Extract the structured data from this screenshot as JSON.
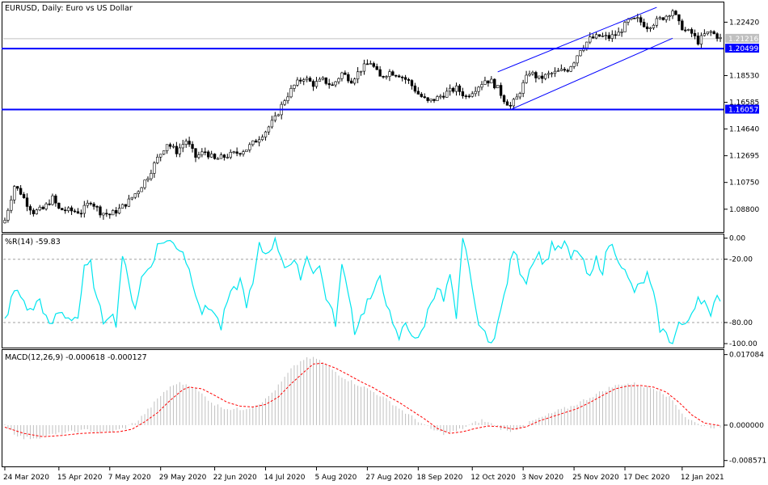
{
  "window_title": "EURUSD, Daily:  Euro vs US Dollar",
  "colors": {
    "background": "#ffffff",
    "candle": "#000000",
    "channel": "#0000ff",
    "level_line": "#0000ff",
    "current_price_line": "#c0c0c0",
    "williams_line": "#00e5ee",
    "macd_hist": "#c0c0c0",
    "macd_signal": "#ff0000",
    "grid_dash": "#a0a0a0"
  },
  "chart_data": [
    {
      "type": "candlestick",
      "title": "EURUSD, Daily:  Euro vs US Dollar",
      "ylim": [
        1.072,
        1.238
      ],
      "y_ticks": [
        "1.22420",
        "1.18530",
        "1.16585",
        "1.14640",
        "1.12695",
        "1.10750",
        "1.08800"
      ],
      "y_tick_values": [
        1.2242,
        1.1853,
        1.16585,
        1.1464,
        1.12695,
        1.1075,
        1.088
      ],
      "x_ticks": [
        "24 Mar 2020",
        "15 Apr 2020",
        "7 May 2020",
        "29 May 2020",
        "22 Jun 2020",
        "14 Jul 2020",
        "5 Aug 2020",
        "27 Aug 2020",
        "18 Sep 2020",
        "12 Oct 2020",
        "3 Nov 2020",
        "25 Nov 2020",
        "17 Dec 2020",
        "12 Jan 2021"
      ],
      "x_tick_bars": [
        0,
        17,
        33,
        49,
        66,
        82,
        98,
        114,
        130,
        147,
        163,
        179,
        195,
        213
      ],
      "bar_count": 226,
      "close_anchors": [
        [
          0,
          1.08
        ],
        [
          3,
          1.105
        ],
        [
          5,
          1.1
        ],
        [
          7,
          1.092
        ],
        [
          9,
          1.086
        ],
        [
          12,
          1.088
        ],
        [
          15,
          1.096
        ],
        [
          17,
          1.088
        ],
        [
          20,
          1.087
        ],
        [
          24,
          1.086
        ],
        [
          27,
          1.094
        ],
        [
          30,
          1.086
        ],
        [
          33,
          1.084
        ],
        [
          36,
          1.088
        ],
        [
          39,
          1.094
        ],
        [
          42,
          1.102
        ],
        [
          45,
          1.112
        ],
        [
          48,
          1.125
        ],
        [
          51,
          1.136
        ],
        [
          54,
          1.13
        ],
        [
          57,
          1.138
        ],
        [
          60,
          1.126
        ],
        [
          63,
          1.13
        ],
        [
          66,
          1.124
        ],
        [
          70,
          1.127
        ],
        [
          73,
          1.129
        ],
        [
          76,
          1.132
        ],
        [
          79,
          1.138
        ],
        [
          82,
          1.145
        ],
        [
          85,
          1.154
        ],
        [
          88,
          1.168
        ],
        [
          91,
          1.178
        ],
        [
          94,
          1.184
        ],
        [
          97,
          1.179
        ],
        [
          100,
          1.182
        ],
        [
          103,
          1.178
        ],
        [
          106,
          1.187
        ],
        [
          109,
          1.182
        ],
        [
          112,
          1.19
        ],
        [
          115,
          1.195
        ],
        [
          118,
          1.184
        ],
        [
          121,
          1.188
        ],
        [
          124,
          1.186
        ],
        [
          127,
          1.181
        ],
        [
          130,
          1.172
        ],
        [
          133,
          1.166
        ],
        [
          136,
          1.169
        ],
        [
          139,
          1.173
        ],
        [
          142,
          1.176
        ],
        [
          145,
          1.17
        ],
        [
          148,
          1.176
        ],
        [
          151,
          1.182
        ],
        [
          153,
          1.181
        ],
        [
          155,
          1.176
        ],
        [
          157,
          1.168
        ],
        [
          159,
          1.163
        ],
        [
          161,
          1.169
        ],
        [
          163,
          1.179
        ],
        [
          165,
          1.188
        ],
        [
          168,
          1.183
        ],
        [
          171,
          1.186
        ],
        [
          174,
          1.188
        ],
        [
          177,
          1.19
        ],
        [
          179,
          1.196
        ],
        [
          181,
          1.205
        ],
        [
          184,
          1.212
        ],
        [
          187,
          1.214
        ],
        [
          190,
          1.213
        ],
        [
          193,
          1.216
        ],
        [
          196,
          1.225
        ],
        [
          199,
          1.226
        ],
        [
          202,
          1.221
        ],
        [
          205,
          1.225
        ],
        [
          208,
          1.229
        ],
        [
          210,
          1.233
        ],
        [
          212,
          1.223
        ],
        [
          214,
          1.218
        ],
        [
          216,
          1.216
        ],
        [
          218,
          1.21
        ],
        [
          220,
          1.215
        ],
        [
          222,
          1.217
        ],
        [
          224,
          1.214
        ],
        [
          225,
          1.2121
        ]
      ],
      "price_labels": [
        {
          "text": "1.21216",
          "value": 1.21216
        },
        {
          "text": "1.20499",
          "value": 1.20499,
          "highlight": true
        },
        {
          "text": "1.16057",
          "value": 1.16057,
          "highlight": true
        }
      ],
      "horizontal_levels": [
        1.20499,
        1.16057
      ],
      "current_price": 1.21216,
      "channel": {
        "lower": [
          [
            159,
            1.1605
          ],
          [
            210,
            1.2125
          ]
        ],
        "upper": [
          [
            155,
            1.188
          ],
          [
            205,
            1.235
          ]
        ]
      }
    },
    {
      "type": "line",
      "title": "%R(14) -59.83",
      "series": [
        {
          "name": "%R(14)",
          "last": -59.83
        }
      ],
      "ylim": [
        -103,
        2
      ],
      "y_ticks": [
        "0.00",
        "-20.00",
        "-80.00",
        "-100.00"
      ],
      "y_tick_values": [
        0,
        -20,
        -80,
        -100
      ],
      "levels": [
        -20,
        -80
      ],
      "anchors": [
        [
          0,
          -78
        ],
        [
          3,
          -50
        ],
        [
          5,
          -55
        ],
        [
          8,
          -70
        ],
        [
          11,
          -58
        ],
        [
          14,
          -85
        ],
        [
          17,
          -70
        ],
        [
          20,
          -75
        ],
        [
          23,
          -75
        ],
        [
          25,
          -30
        ],
        [
          27,
          -25
        ],
        [
          29,
          -60
        ],
        [
          31,
          -78
        ],
        [
          33,
          -70
        ],
        [
          35,
          -80
        ],
        [
          37,
          -15
        ],
        [
          39,
          -45
        ],
        [
          41,
          -65
        ],
        [
          43,
          -38
        ],
        [
          46,
          -25
        ],
        [
          48,
          -8
        ],
        [
          50,
          -2
        ],
        [
          53,
          -5
        ],
        [
          56,
          -12
        ],
        [
          59,
          -40
        ],
        [
          62,
          -70
        ],
        [
          65,
          -65
        ],
        [
          68,
          -85
        ],
        [
          70,
          -60
        ],
        [
          72,
          -50
        ],
        [
          74,
          -40
        ],
        [
          76,
          -62
        ],
        [
          78,
          -45
        ],
        [
          80,
          -8
        ],
        [
          82,
          -15
        ],
        [
          85,
          -2
        ],
        [
          88,
          -25
        ],
        [
          91,
          -25
        ],
        [
          93,
          -35
        ],
        [
          95,
          -18
        ],
        [
          97,
          -30
        ],
        [
          99,
          -28
        ],
        [
          101,
          -55
        ],
        [
          104,
          -80
        ],
        [
          106,
          -28
        ],
        [
          108,
          -48
        ],
        [
          110,
          -88
        ],
        [
          112,
          -75
        ],
        [
          114,
          -60
        ],
        [
          116,
          -55
        ],
        [
          118,
          -35
        ],
        [
          120,
          -60
        ],
        [
          122,
          -85
        ],
        [
          124,
          -95
        ],
        [
          126,
          -80
        ],
        [
          128,
          -90
        ],
        [
          130,
          -98
        ],
        [
          132,
          -80
        ],
        [
          134,
          -60
        ],
        [
          136,
          -45
        ],
        [
          138,
          -60
        ],
        [
          140,
          -35
        ],
        [
          142,
          -80
        ],
        [
          144,
          -2
        ],
        [
          146,
          -25
        ],
        [
          148,
          -70
        ],
        [
          150,
          -85
        ],
        [
          152,
          -100
        ],
        [
          154,
          -90
        ],
        [
          156,
          -70
        ],
        [
          158,
          -40
        ],
        [
          160,
          -10
        ],
        [
          162,
          -30
        ],
        [
          164,
          -40
        ],
        [
          166,
          -20
        ],
        [
          168,
          -15
        ],
        [
          170,
          -25
        ],
        [
          172,
          -5
        ],
        [
          174,
          -12
        ],
        [
          176,
          -5
        ],
        [
          178,
          -20
        ],
        [
          180,
          -10
        ],
        [
          182,
          -25
        ],
        [
          184,
          -40
        ],
        [
          186,
          -20
        ],
        [
          188,
          -30
        ],
        [
          190,
          -5
        ],
        [
          192,
          -12
        ],
        [
          194,
          -25
        ],
        [
          196,
          -40
        ],
        [
          198,
          -50
        ],
        [
          200,
          -45
        ],
        [
          202,
          -35
        ],
        [
          204,
          -55
        ],
        [
          206,
          -85
        ],
        [
          208,
          -92
        ],
        [
          210,
          -100
        ],
        [
          212,
          -80
        ],
        [
          214,
          -85
        ],
        [
          216,
          -70
        ],
        [
          218,
          -55
        ],
        [
          220,
          -60
        ],
        [
          222,
          -78
        ],
        [
          224,
          -50
        ],
        [
          225,
          -59.83
        ]
      ]
    },
    {
      "type": "histogram+line",
      "title": "MACD(12,26,9) -0.000618 -0.000127",
      "series": [
        {
          "name": "MACD(12,26,9)",
          "last": -0.000618
        },
        {
          "name": "signal",
          "last": -0.000127
        }
      ],
      "ylim": [
        -0.0098,
        0.0178
      ],
      "y_ticks": [
        "0.017084",
        "0.000000",
        "-0.008571"
      ],
      "y_tick_values": [
        0.017084,
        0.0,
        -0.008571
      ],
      "macd_anchors": [
        [
          0,
          0.0002
        ],
        [
          3,
          -0.002
        ],
        [
          6,
          -0.0032
        ],
        [
          10,
          -0.003
        ],
        [
          14,
          -0.0025
        ],
        [
          18,
          -0.002
        ],
        [
          22,
          -0.0016
        ],
        [
          26,
          -0.0012
        ],
        [
          30,
          -0.0018
        ],
        [
          34,
          -0.0016
        ],
        [
          38,
          -0.0006
        ],
        [
          42,
          0.0012
        ],
        [
          46,
          0.0045
        ],
        [
          50,
          0.008
        ],
        [
          54,
          0.0102
        ],
        [
          58,
          0.0098
        ],
        [
          62,
          0.0075
        ],
        [
          66,
          0.005
        ],
        [
          70,
          0.004
        ],
        [
          74,
          0.0038
        ],
        [
          78,
          0.0045
        ],
        [
          82,
          0.0062
        ],
        [
          86,
          0.0095
        ],
        [
          90,
          0.0135
        ],
        [
          94,
          0.016
        ],
        [
          98,
          0.0162
        ],
        [
          102,
          0.014
        ],
        [
          106,
          0.0118
        ],
        [
          110,
          0.0102
        ],
        [
          114,
          0.0088
        ],
        [
          118,
          0.0072
        ],
        [
          122,
          0.0052
        ],
        [
          126,
          0.003
        ],
        [
          130,
          0.001
        ],
        [
          134,
          -0.001
        ],
        [
          138,
          -0.002
        ],
        [
          142,
          -0.0015
        ],
        [
          146,
          0.0
        ],
        [
          150,
          0.0012
        ],
        [
          154,
          0.0
        ],
        [
          158,
          -0.0015
        ],
        [
          162,
          -0.0006
        ],
        [
          166,
          0.001
        ],
        [
          170,
          0.0022
        ],
        [
          174,
          0.0035
        ],
        [
          178,
          0.0045
        ],
        [
          182,
          0.006
        ],
        [
          186,
          0.0075
        ],
        [
          190,
          0.009
        ],
        [
          194,
          0.01
        ],
        [
          198,
          0.01
        ],
        [
          202,
          0.0092
        ],
        [
          206,
          0.0085
        ],
        [
          210,
          0.006
        ],
        [
          214,
          0.002
        ],
        [
          218,
          0.0002
        ],
        [
          222,
          -0.0004
        ],
        [
          225,
          -0.000618
        ]
      ],
      "signal_anchors": [
        [
          0,
          -0.0005
        ],
        [
          6,
          -0.002
        ],
        [
          12,
          -0.0028
        ],
        [
          18,
          -0.0025
        ],
        [
          24,
          -0.002
        ],
        [
          30,
          -0.0018
        ],
        [
          36,
          -0.0016
        ],
        [
          40,
          -0.001
        ],
        [
          44,
          0.0008
        ],
        [
          48,
          0.003
        ],
        [
          52,
          0.006
        ],
        [
          56,
          0.0086
        ],
        [
          58,
          0.0092
        ],
        [
          62,
          0.0088
        ],
        [
          66,
          0.0072
        ],
        [
          70,
          0.0055
        ],
        [
          74,
          0.0046
        ],
        [
          78,
          0.0044
        ],
        [
          82,
          0.005
        ],
        [
          86,
          0.0068
        ],
        [
          90,
          0.01
        ],
        [
          94,
          0.0128
        ],
        [
          97,
          0.0148
        ],
        [
          100,
          0.015
        ],
        [
          104,
          0.0138
        ],
        [
          108,
          0.0122
        ],
        [
          112,
          0.0105
        ],
        [
          116,
          0.009
        ],
        [
          120,
          0.0072
        ],
        [
          124,
          0.0055
        ],
        [
          128,
          0.0035
        ],
        [
          132,
          0.0015
        ],
        [
          136,
          -0.0008
        ],
        [
          140,
          -0.002
        ],
        [
          144,
          -0.0016
        ],
        [
          148,
          -0.0008
        ],
        [
          152,
          -0.0002
        ],
        [
          156,
          -0.0004
        ],
        [
          160,
          -0.001
        ],
        [
          164,
          -0.0004
        ],
        [
          168,
          0.001
        ],
        [
          172,
          0.002
        ],
        [
          176,
          0.003
        ],
        [
          180,
          0.004
        ],
        [
          184,
          0.0055
        ],
        [
          188,
          0.0072
        ],
        [
          192,
          0.0088
        ],
        [
          196,
          0.0095
        ],
        [
          200,
          0.0096
        ],
        [
          204,
          0.0092
        ],
        [
          208,
          0.008
        ],
        [
          212,
          0.0055
        ],
        [
          216,
          0.0025
        ],
        [
          220,
          0.0005
        ],
        [
          225,
          -0.000127
        ]
      ]
    }
  ]
}
